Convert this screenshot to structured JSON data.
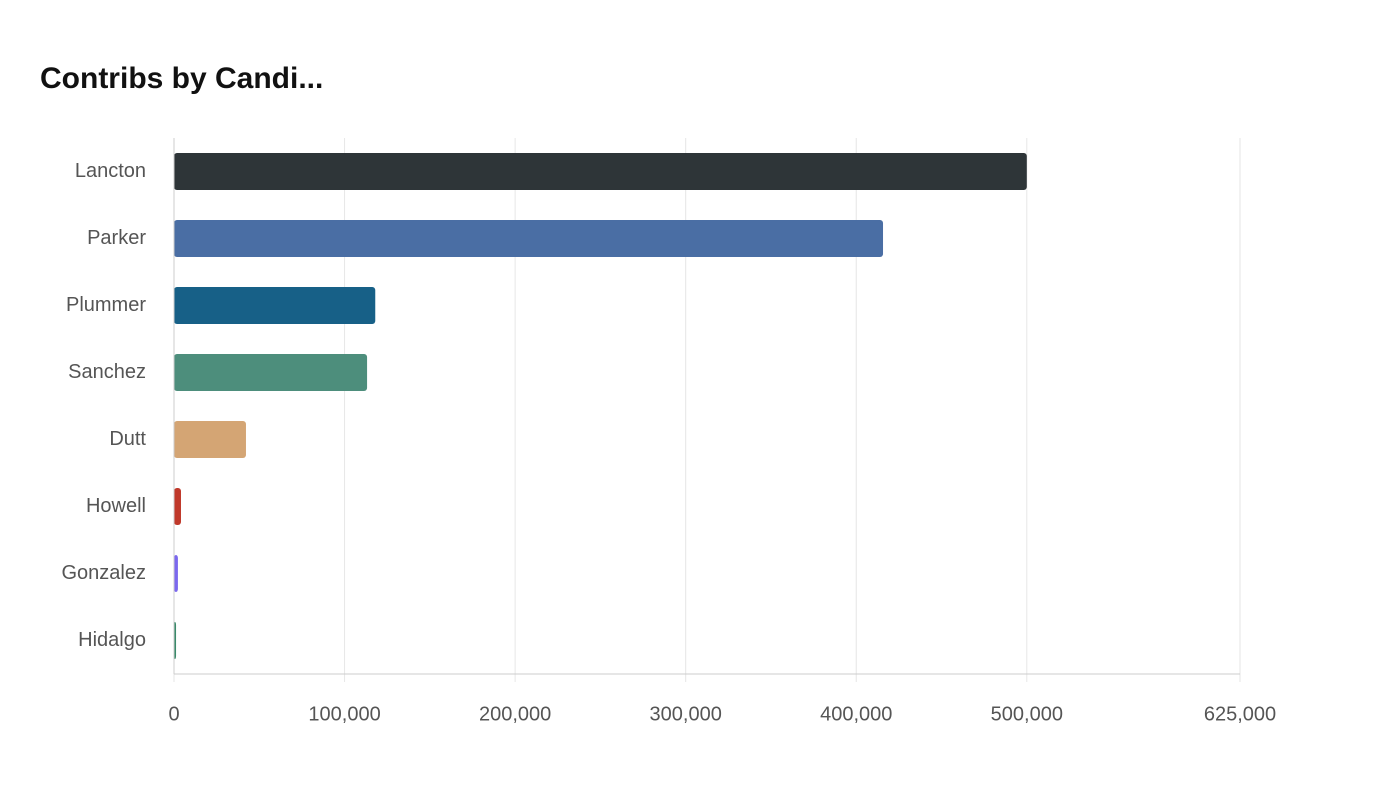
{
  "chart_data": {
    "type": "hbar",
    "title": "Contribs by Candi...",
    "categories": [
      "Lancton",
      "Parker",
      "Plummer",
      "Sanchez",
      "Dutt",
      "Howell",
      "Gonzalez",
      "Hidalgo"
    ],
    "values": [
      500000,
      415700,
      118000,
      113200,
      42200,
      4100,
      2300,
      1200
    ],
    "colors": [
      "#2e3538",
      "#4a6ea4",
      "#176087",
      "#4d8e7c",
      "#d4a574",
      "#c0392b",
      "#7b68ee",
      "#3a8a6a"
    ],
    "xlim": [
      0,
      625000
    ],
    "xticks": [
      0,
      {
        "value": 100000,
        "label": "100,000"
      },
      {
        "value": 200000,
        "label": "200,000"
      },
      {
        "value": 300000,
        "label": "300,000"
      },
      {
        "value": 400000,
        "label": "400,000"
      },
      {
        "value": 500000,
        "label": "500,000"
      },
      {
        "value": 625000,
        "label": "625,000"
      }
    ],
    "grid": true
  }
}
